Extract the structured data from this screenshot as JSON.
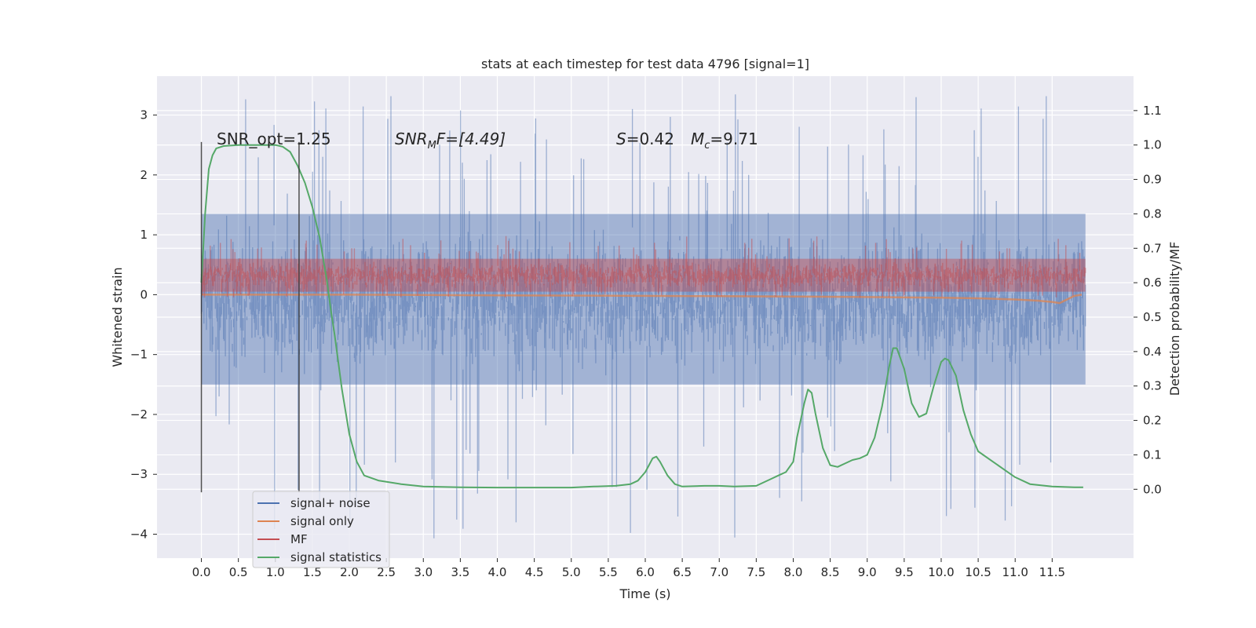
{
  "chart_data": {
    "type": "line",
    "title": "stats at each timestep for test data 4796 [signal=1]",
    "xlabel": "Time (s)",
    "ylabel_left": "Whitened strain",
    "ylabel_right": "Detection probability/MF",
    "xlim": [
      -0.6,
      12.6
    ],
    "ylim_left": [
      -4.4,
      3.65
    ],
    "ylim_right": [
      -0.2,
      1.2
    ],
    "x_ticks": [
      0.0,
      0.5,
      1.0,
      1.5,
      2.0,
      2.5,
      3.0,
      3.5,
      4.0,
      4.5,
      5.0,
      5.5,
      6.0,
      6.5,
      7.0,
      7.5,
      8.0,
      8.5,
      9.0,
      9.5,
      10.0,
      10.5,
      11.0,
      11.5
    ],
    "x_tick_labels": [
      "0.0",
      "0.5",
      "1.0",
      "1.5",
      "2.0",
      "2.5",
      "3.0",
      "3.5",
      "4.0",
      "4.5",
      "5.0",
      "5.5",
      "6.0",
      "6.5",
      "7.0",
      "7.5",
      "8.0",
      "8.5",
      "9.0",
      "9.5",
      "10.0",
      "10.5",
      "11.0",
      "11.5"
    ],
    "y_left_ticks": [
      3,
      2,
      1,
      0,
      -1,
      -2,
      -3,
      -4
    ],
    "y_left_tick_labels": [
      "3",
      "2",
      "1",
      "0",
      "−1",
      "−2",
      "−3",
      "−4"
    ],
    "y_right_ticks": [
      1.1,
      1.0,
      0.9,
      0.8,
      0.7,
      0.6,
      0.5,
      0.4,
      0.3,
      0.2,
      0.1,
      0.0
    ],
    "y_right_tick_labels": [
      "1.1",
      "1.0",
      "0.9",
      "0.8",
      "0.7",
      "0.6",
      "0.5",
      "0.4",
      "0.3",
      "0.2",
      "0.1",
      "0.0"
    ],
    "grid": true,
    "legend_position": "bottom-left",
    "annotations": {
      "snr_opt": "SNR_opt=1.25",
      "snr_mf_main": "SNR",
      "snr_mf_sub": "M",
      "snr_mf_rest": "F=[4.49]",
      "s_main": "S",
      "s_rest": "=0.42",
      "mc_main": "M",
      "mc_sub": "c",
      "mc_rest": "=9.71"
    },
    "vertical_lines_x": [
      0.0,
      1.32
    ],
    "vertical_lines_range_left": [
      -3.3,
      2.55
    ],
    "series": [
      {
        "name": "signal+ noise",
        "axis": "left",
        "color": "#4c72b0",
        "x_range": [
          0.0,
          11.95
        ],
        "band_typical": [
          -1.5,
          1.35
        ],
        "band_extreme": [
          -4.1,
          3.35
        ]
      },
      {
        "name": "signal only",
        "axis": "left",
        "color": "#dd8452",
        "x": [
          0.0,
          2.0,
          4.0,
          6.0,
          8.0,
          9.0,
          10.0,
          10.5,
          11.0,
          11.3,
          11.5,
          11.6,
          11.7,
          11.8,
          11.9
        ],
        "y": [
          0.0,
          0.0,
          -0.01,
          -0.02,
          -0.03,
          -0.04,
          -0.05,
          -0.06,
          -0.08,
          -0.1,
          -0.12,
          -0.14,
          -0.08,
          -0.02,
          0.0
        ]
      },
      {
        "name": "MF",
        "axis": "left",
        "color": "#c44e52",
        "x_range": [
          0.0,
          11.95
        ],
        "band_typical": [
          0.05,
          0.6
        ],
        "band_extreme": [
          -0.05,
          0.98
        ]
      },
      {
        "name": "signal statistics",
        "axis": "right",
        "color": "#55a868",
        "x": [
          0.0,
          0.05,
          0.1,
          0.15,
          0.2,
          0.3,
          0.5,
          0.8,
          1.0,
          1.1,
          1.2,
          1.3,
          1.4,
          1.5,
          1.6,
          1.7,
          1.75,
          1.8,
          1.85,
          1.9,
          2.0,
          2.1,
          2.2,
          2.4,
          2.7,
          3.0,
          3.5,
          4.0,
          4.5,
          5.0,
          5.3,
          5.6,
          5.8,
          5.9,
          6.0,
          6.05,
          6.1,
          6.15,
          6.2,
          6.3,
          6.4,
          6.5,
          6.8,
          7.0,
          7.2,
          7.5,
          7.7,
          7.8,
          7.9,
          8.0,
          8.05,
          8.1,
          8.15,
          8.2,
          8.25,
          8.3,
          8.4,
          8.5,
          8.6,
          8.7,
          8.8,
          8.9,
          9.0,
          9.1,
          9.2,
          9.3,
          9.35,
          9.4,
          9.5,
          9.6,
          9.7,
          9.8,
          9.9,
          10.0,
          10.05,
          10.1,
          10.2,
          10.3,
          10.4,
          10.5,
          10.7,
          10.9,
          11.0,
          11.2,
          11.5,
          11.8,
          11.92
        ],
        "y": [
          0.6,
          0.8,
          0.93,
          0.97,
          0.99,
          0.997,
          1.0,
          1.0,
          1.0,
          0.995,
          0.98,
          0.94,
          0.89,
          0.82,
          0.73,
          0.6,
          0.52,
          0.45,
          0.37,
          0.29,
          0.16,
          0.08,
          0.04,
          0.025,
          0.015,
          0.008,
          0.006,
          0.005,
          0.005,
          0.005,
          0.008,
          0.01,
          0.015,
          0.025,
          0.05,
          0.07,
          0.09,
          0.095,
          0.08,
          0.04,
          0.015,
          0.008,
          0.01,
          0.01,
          0.008,
          0.01,
          0.03,
          0.04,
          0.05,
          0.08,
          0.15,
          0.2,
          0.25,
          0.29,
          0.28,
          0.22,
          0.12,
          0.07,
          0.065,
          0.075,
          0.085,
          0.09,
          0.1,
          0.15,
          0.24,
          0.36,
          0.41,
          0.41,
          0.35,
          0.25,
          0.21,
          0.22,
          0.3,
          0.37,
          0.38,
          0.375,
          0.33,
          0.23,
          0.16,
          0.11,
          0.08,
          0.05,
          0.035,
          0.015,
          0.008,
          0.006,
          0.006
        ]
      }
    ]
  }
}
